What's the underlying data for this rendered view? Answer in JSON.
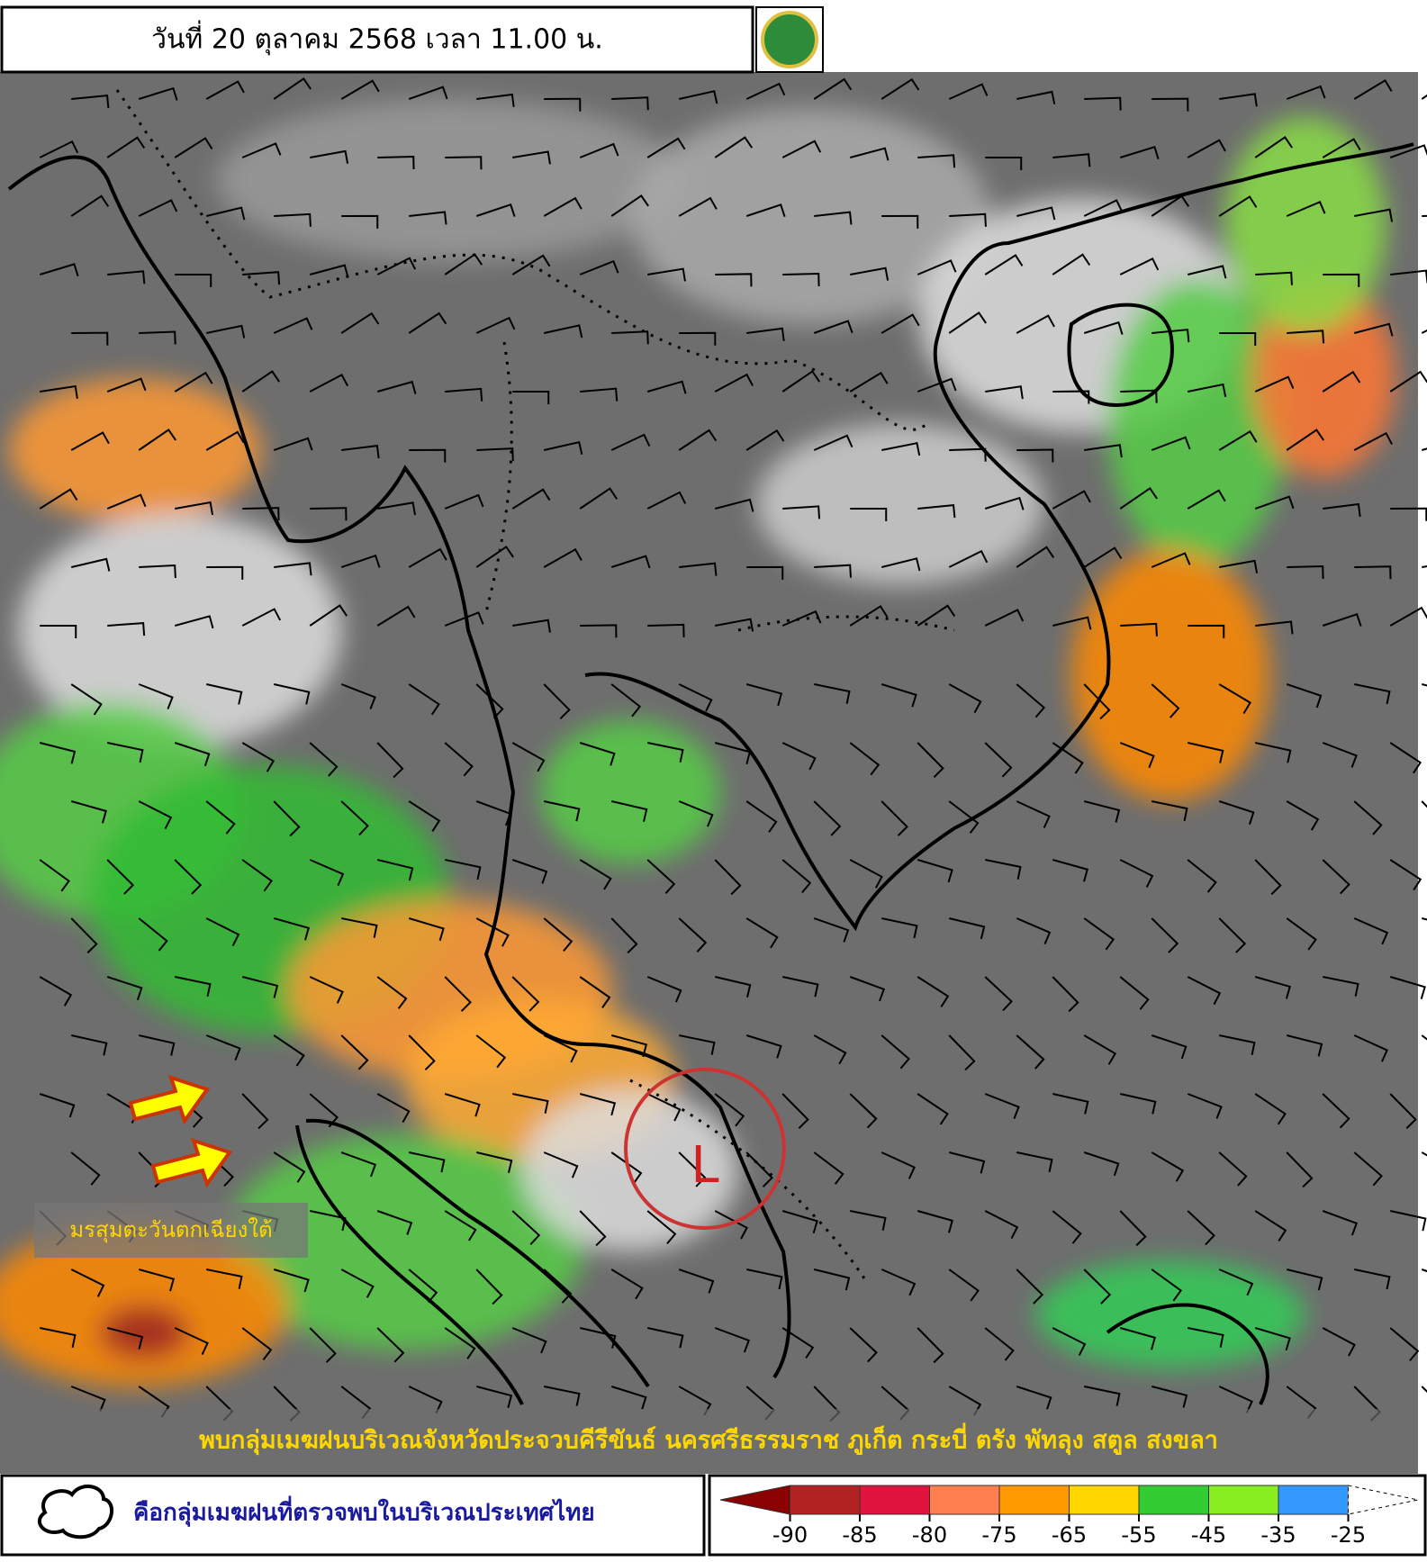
{
  "header": {
    "title": "วันที่ 20 ตุลาคม 2568 เวลา 11.00 น."
  },
  "map": {
    "low_label": "L",
    "monsoon_label": "มรสุมตะวันตกเฉียงใต้"
  },
  "banner": {
    "text": "พบกลุ่มเมฆฝนบริเวณจังหวัดประจวบคีรีขันธ์ นครศรีธรรมราช ภูเก็ต กระบี่ ตรัง พัทลุง สตูล สงขลา"
  },
  "legend": {
    "cloud_label": "คือกลุ่มเมฆฝนที่ตรวจพบในบริเวณประเทศไทย"
  },
  "color_scale": {
    "colors": [
      "#8b0000",
      "#b22222",
      "#e0143c",
      "#ff7f50",
      "#ff9900",
      "#ffd700",
      "#33cc33",
      "#88ee22",
      "#3399ff",
      "#ffffff"
    ],
    "ticks": [
      -90,
      -85,
      -80,
      -75,
      -65,
      -55,
      -45,
      -35,
      -25
    ]
  }
}
